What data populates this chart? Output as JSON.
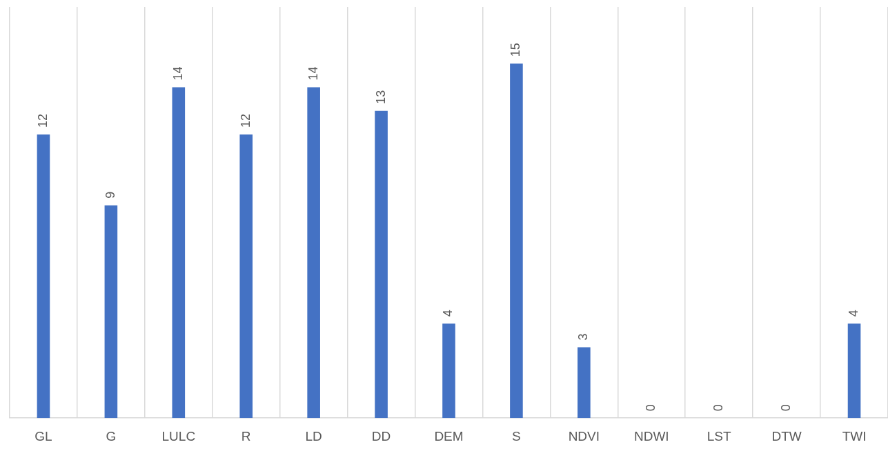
{
  "chart_data": {
    "type": "bar",
    "categories": [
      "GL",
      "G",
      "LULC",
      "R",
      "LD",
      "DD",
      "DEM",
      "S",
      "NDVI",
      "NDWI",
      "LST",
      "DTW",
      "TWI"
    ],
    "values": [
      12,
      9,
      14,
      12,
      14,
      13,
      4,
      15,
      3,
      0,
      0,
      0,
      4
    ],
    "color": "#4472c4",
    "data_labels": true,
    "grid": "x",
    "legend": false
  }
}
